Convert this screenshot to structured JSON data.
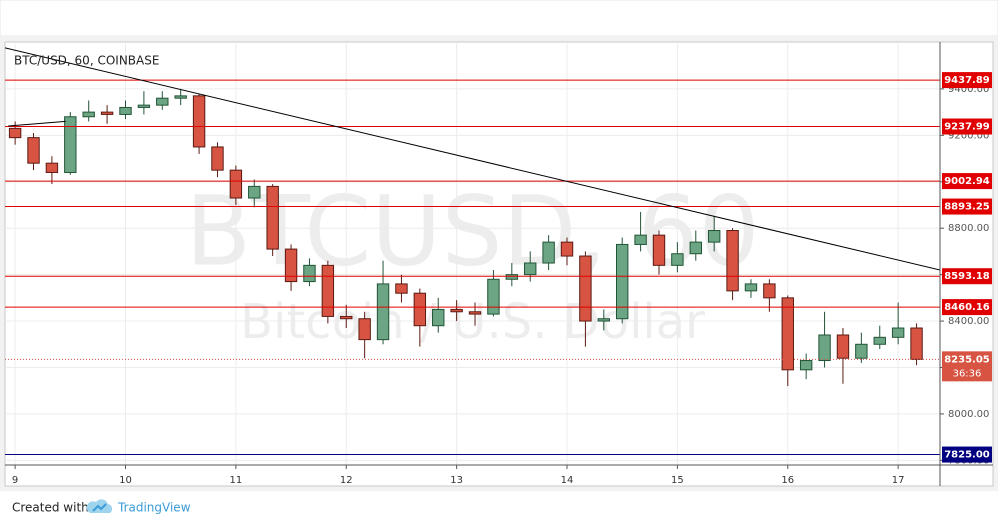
{
  "chart_data": {
    "type": "candlestick",
    "title": "BTC/USD, 60, COINBASE",
    "watermark": "BTCUSD, 60",
    "watermark_subtitle": "Bitcoin / U.S. Dollar",
    "x": [
      0,
      4,
      8,
      12,
      16,
      20,
      24,
      28,
      32,
      36,
      40,
      44,
      48,
      52,
      56,
      60,
      64,
      68,
      72,
      76,
      80,
      84,
      88,
      92,
      96,
      100,
      104,
      108,
      112,
      116,
      120,
      124,
      128,
      132,
      136,
      140,
      144,
      148,
      152,
      156,
      160,
      164,
      168,
      172,
      176,
      180,
      184,
      188,
      192,
      196
    ],
    "open": [
      9230,
      9190,
      9080,
      9040,
      9280,
      9300,
      9290,
      9320,
      9330,
      9360,
      9370,
      9150,
      9050,
      8930,
      8980,
      8710,
      8570,
      8640,
      8420,
      8410,
      8320,
      8560,
      8520,
      8380,
      8450,
      8440,
      8430,
      8580,
      8600,
      8650,
      8740,
      8680,
      8400,
      8410,
      8730,
      8770,
      8640,
      8690,
      8740,
      8790,
      8530,
      8560,
      8500,
      8190,
      8230,
      8340,
      8240,
      8300,
      8330,
      8370
    ],
    "high": [
      9260,
      9210,
      9110,
      9300,
      9350,
      9330,
      9350,
      9390,
      9390,
      9400,
      9380,
      9170,
      9070,
      9010,
      8990,
      8730,
      8670,
      8660,
      8470,
      8440,
      8660,
      8600,
      8540,
      8500,
      8490,
      8480,
      8620,
      8650,
      8700,
      8770,
      8760,
      8700,
      8450,
      8760,
      8870,
      8790,
      8740,
      8790,
      8850,
      8800,
      8580,
      8580,
      8510,
      8260,
      8440,
      8370,
      8350,
      8380,
      8480,
      8390
    ],
    "low": [
      9160,
      9050,
      8990,
      9030,
      9260,
      9250,
      9270,
      9290,
      9310,
      9330,
      9120,
      9020,
      8900,
      8890,
      8680,
      8530,
      8550,
      8390,
      8370,
      8240,
      8300,
      8480,
      8290,
      8350,
      8400,
      8380,
      8420,
      8550,
      8570,
      8620,
      8640,
      8290,
      8360,
      8390,
      8700,
      8600,
      8610,
      8660,
      8700,
      8490,
      8500,
      8440,
      8120,
      8150,
      8200,
      8130,
      8220,
      8280,
      8300,
      8210
    ],
    "close": [
      9190,
      9080,
      9040,
      9280,
      9300,
      9290,
      9320,
      9330,
      9360,
      9370,
      9150,
      9050,
      8930,
      8980,
      8710,
      8570,
      8640,
      8420,
      8410,
      8320,
      8560,
      8520,
      8380,
      8450,
      8440,
      8430,
      8580,
      8600,
      8650,
      8740,
      8680,
      8400,
      8410,
      8730,
      8770,
      8640,
      8690,
      8740,
      8790,
      8530,
      8560,
      8500,
      8190,
      8230,
      8340,
      8240,
      8300,
      8330,
      8370,
      8235.05
    ],
    "up_color": "#6ba583",
    "down_color": "#d75442",
    "xlim": [
      -2.2,
      201.1
    ],
    "ylim": [
      7780,
      9602
    ],
    "xticks": [
      {
        "value": 0,
        "label": "9"
      },
      {
        "value": 24,
        "label": "10"
      },
      {
        "value": 48,
        "label": "11"
      },
      {
        "value": 72,
        "label": "12"
      },
      {
        "value": 96,
        "label": "13"
      },
      {
        "value": 120,
        "label": "14"
      },
      {
        "value": 144,
        "label": "15"
      },
      {
        "value": 168,
        "label": "16"
      },
      {
        "value": 192,
        "label": "17"
      }
    ],
    "yticks": [
      {
        "value": 7800,
        "label": "7800.00"
      },
      {
        "value": 8000,
        "label": "8000.00"
      },
      {
        "value": 8200,
        "label": "8200.00"
      },
      {
        "value": 8400,
        "label": "8400.00"
      },
      {
        "value": 8600,
        "label": "8600.00"
      },
      {
        "value": 8800,
        "label": "8800.00"
      },
      {
        "value": 9000,
        "label": "9000.00"
      },
      {
        "value": 9200,
        "label": "9200.00"
      },
      {
        "value": 9400,
        "label": "9400.00"
      }
    ],
    "grid": true,
    "levels": [
      {
        "value": 9437.89,
        "color": "#e00000"
      },
      {
        "value": 9237.99,
        "color": "#e00000"
      },
      {
        "value": 9002.94,
        "color": "#e00000"
      },
      {
        "value": 8893.25,
        "color": "#e00000"
      },
      {
        "value": 8593.18,
        "color": "#e00000"
      },
      {
        "value": 8460.16,
        "color": "#e00000"
      },
      {
        "value": 7825,
        "label": "7825.00",
        "color": "#000080"
      }
    ],
    "trendlines": [
      {
        "x": [
          -2.2,
          201.1
        ],
        "y": [
          9577,
          8620
        ]
      },
      {
        "x": [
          -1.5,
          11
        ],
        "y": [
          9240,
          9260
        ]
      }
    ],
    "current_price": {
      "value": 8235.05,
      "countdown": "36:36",
      "color": "#d75442"
    }
  },
  "footer": {
    "prefix": "Created with",
    "brand": "TradingView"
  }
}
